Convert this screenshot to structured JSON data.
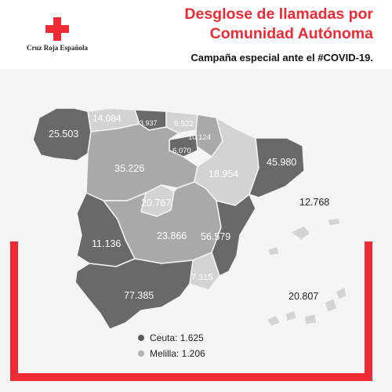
{
  "header": {
    "title_line1": "Desglose de llamadas por",
    "title_line2": "Comunidad Autónoma",
    "subtitle": "Campaña especial ante el #COVID-19."
  },
  "logo": {
    "icon": "red-cross-icon",
    "text": "Cruz Roja Española"
  },
  "colors": {
    "brand_red": "#ee2b35",
    "dark_region": "#696969",
    "mid_region": "#a9a9a9",
    "light_region": "#d3d3d3"
  },
  "regions": [
    {
      "name": "galicia",
      "value": "25.503"
    },
    {
      "name": "asturias",
      "value": "14.084"
    },
    {
      "name": "cantabria",
      "value": "3.937"
    },
    {
      "name": "pais-vasco",
      "value": "6.522"
    },
    {
      "name": "navarra",
      "value": "10.124"
    },
    {
      "name": "la-rioja",
      "value": "6.070"
    },
    {
      "name": "castilla-y-leon",
      "value": "35.226"
    },
    {
      "name": "aragon",
      "value": "18.954"
    },
    {
      "name": "cataluna",
      "value": "45.980"
    },
    {
      "name": "madrid",
      "value": "20.767"
    },
    {
      "name": "castilla-la-mancha",
      "value": "23.866"
    },
    {
      "name": "comunidad-valenciana",
      "value": "56.579"
    },
    {
      "name": "extremadura",
      "value": "11.136"
    },
    {
      "name": "murcia",
      "value": "7.315"
    },
    {
      "name": "andalucia",
      "value": "77.385"
    },
    {
      "name": "baleares",
      "value": "12.768"
    },
    {
      "name": "canarias",
      "value": "20.807"
    }
  ],
  "legend": [
    {
      "label": "Ceuta: 1.625",
      "color": "#5a5a5a"
    },
    {
      "label": "Melilla: 1.206",
      "color": "#b3b3b3"
    }
  ]
}
